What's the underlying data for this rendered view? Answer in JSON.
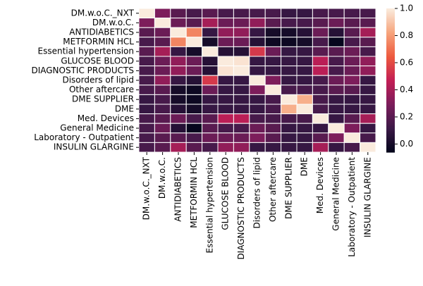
{
  "chart_data": {
    "type": "heatmap",
    "x": [
      "DM.w.o.C._NXT",
      "DM.w.o.C.",
      "ANTIDIABETICS",
      "METFORMIN HCL",
      "Essential hypertension",
      "GLUCOSE BLOOD",
      "DIAGNOSTIC PRODUCTS",
      "Disorders of lipid",
      "Other aftercare",
      "DME SUPPLIER",
      "DME",
      "Med. Devices",
      "General Medicine",
      "Laboratory - Outpatient",
      "INSULIN GLARGINE"
    ],
    "y": [
      "DM.w.o.C._NXT",
      "DM.w.o.C.",
      "ANTIDIABETICS",
      "METFORMIN HCL",
      "Essential hypertension",
      "GLUCOSE BLOOD",
      "DIAGNOSTIC PRODUCTS",
      "Disorders of lipid",
      "Other aftercare",
      "DME SUPPLIER",
      "DME",
      "Med. Devices",
      "General Medicine",
      "Laboratory - Outpatient",
      "INSULIN GLARGINE"
    ],
    "z": [
      [
        1,
        0.3,
        0.2,
        0.15,
        0.2,
        0.15,
        0.15,
        0.15,
        0.15,
        0.1,
        0.1,
        0.15,
        0.15,
        0.15,
        0.15
      ],
      [
        0.3,
        1,
        0.25,
        0.2,
        0.4,
        0.25,
        0.25,
        0.35,
        0.2,
        0.15,
        0.15,
        0.2,
        0.25,
        0.2,
        0.2
      ],
      [
        0.2,
        0.25,
        1,
        0.75,
        0.1,
        0.35,
        0.35,
        0.1,
        0.0,
        0.0,
        0.05,
        0.25,
        0.05,
        0.2,
        0.4
      ],
      [
        0.15,
        0.2,
        0.75,
        1,
        0.0,
        0.25,
        0.25,
        0.05,
        -0.03,
        -0.03,
        0.0,
        0.15,
        -0.05,
        0.15,
        0.2
      ],
      [
        0.2,
        0.4,
        0.1,
        0.0,
        1,
        0.05,
        0.05,
        0.55,
        0.25,
        0.1,
        0.1,
        0.2,
        0.2,
        0.25,
        0.15
      ],
      [
        0.15,
        0.25,
        0.35,
        0.25,
        0.05,
        1,
        0.98,
        0.1,
        0.1,
        0.1,
        0.1,
        0.45,
        0.15,
        0.25,
        0.35
      ],
      [
        0.15,
        0.25,
        0.35,
        0.25,
        0.05,
        0.98,
        1,
        0.1,
        0.1,
        0.1,
        0.1,
        0.45,
        0.15,
        0.25,
        0.35
      ],
      [
        0.15,
        0.35,
        0.1,
        0.05,
        0.55,
        0.1,
        0.1,
        1,
        0.3,
        0.1,
        0.1,
        0.15,
        0.25,
        0.3,
        0.1
      ],
      [
        0.15,
        0.2,
        0.0,
        -0.03,
        0.25,
        0.1,
        0.1,
        0.3,
        1,
        0.15,
        0.15,
        0.15,
        0.2,
        0.2,
        0.1
      ],
      [
        0.1,
        0.15,
        0.0,
        -0.03,
        0.1,
        0.1,
        0.1,
        0.1,
        0.15,
        1,
        0.85,
        0.15,
        0.1,
        0.1,
        0.1
      ],
      [
        0.1,
        0.15,
        0.05,
        0.0,
        0.1,
        0.1,
        0.1,
        0.1,
        0.15,
        0.85,
        1,
        0.15,
        0.1,
        0.1,
        0.1
      ],
      [
        0.15,
        0.2,
        0.25,
        0.15,
        0.2,
        0.45,
        0.45,
        0.15,
        0.15,
        0.15,
        0.15,
        1,
        0.1,
        0.2,
        0.4
      ],
      [
        0.15,
        0.25,
        0.05,
        -0.05,
        0.2,
        0.15,
        0.15,
        0.25,
        0.2,
        0.1,
        0.1,
        0.1,
        1,
        0.3,
        0.1
      ],
      [
        0.15,
        0.2,
        0.2,
        0.15,
        0.25,
        0.25,
        0.25,
        0.3,
        0.2,
        0.1,
        0.1,
        0.2,
        0.3,
        1,
        0.15
      ],
      [
        0.15,
        0.2,
        0.4,
        0.2,
        0.15,
        0.35,
        0.35,
        0.1,
        0.1,
        0.1,
        0.1,
        0.4,
        0.1,
        0.15,
        1
      ]
    ],
    "colormap": [
      "#03051a",
      "#3b1947",
      "#7a1d5b",
      "#c21e55",
      "#ed5a3e",
      "#f6a47c",
      "#faebdd"
    ],
    "clim": [
      -0.06,
      1.0
    ],
    "cticks": [
      {
        "value": 0,
        "label": "0.0"
      },
      {
        "value": 0.2,
        "label": "0.2"
      },
      {
        "value": 0.4,
        "label": "0.4"
      },
      {
        "value": 0.6,
        "label": "0.6"
      },
      {
        "value": 0.8,
        "label": "0.8"
      },
      {
        "value": 1,
        "label": "1.0"
      }
    ]
  }
}
